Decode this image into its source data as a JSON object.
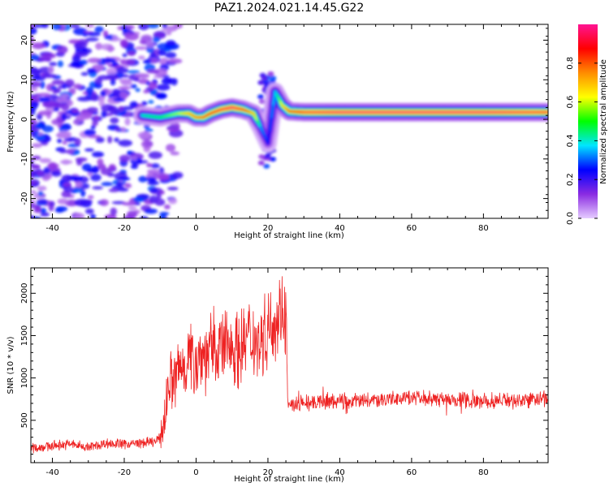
{
  "title": "PAZ1.2024.021.14.45.G22",
  "chart_data": [
    {
      "type": "heatmap",
      "xlabel": "Height of straight line (km)",
      "ylabel": "Frequency (Hz)",
      "xlim": [
        -46,
        98
      ],
      "ylim": [
        -25,
        24
      ],
      "xticks": [
        -40,
        -20,
        0,
        20,
        40,
        60,
        80
      ],
      "yticks": [
        -20,
        -10,
        0,
        10,
        20
      ],
      "colorbar": {
        "label": "Normalized spectral amplitude",
        "range": [
          0.0,
          1.0
        ],
        "ticks": [
          "0.0",
          "0.2",
          "0.4",
          "0.6",
          "0.8"
        ],
        "colors": [
          "#e6ccff",
          "#8a2be2",
          "#0000ff",
          "#00e5ff",
          "#00ff00",
          "#ffff00",
          "#ff8c00",
          "#ff0000",
          "#ff1493"
        ]
      },
      "ridge": {
        "x": [
          -15,
          -10,
          -5,
          -2,
          0,
          2,
          4,
          7,
          10,
          13,
          16,
          18,
          20,
          22,
          24,
          26,
          30,
          40,
          60,
          80,
          98
        ],
        "y": [
          1,
          0.5,
          1.5,
          1.5,
          0.5,
          0.5,
          1.5,
          2.5,
          3,
          2.5,
          1.5,
          -2,
          -6,
          7,
          3.5,
          2,
          1.8,
          1.8,
          1.8,
          1.8,
          1.8
        ],
        "amplitude": [
          0.45,
          0.5,
          0.6,
          0.75,
          0.8,
          0.85,
          0.9,
          0.95,
          1.0,
          0.9,
          0.7,
          0.35,
          0.25,
          0.4,
          0.7,
          0.85,
          0.95,
          1.0,
          1.0,
          1.0,
          0.95
        ]
      },
      "noise_region": {
        "x_range": [
          -46,
          -5
        ],
        "amplitude_range": [
          0.05,
          0.3
        ]
      }
    },
    {
      "type": "line",
      "xlabel": "Height of straight line (km)",
      "ylabel": "SNR (10 * v/v)",
      "xlim": [
        -46,
        98
      ],
      "ylim": [
        0,
        2300
      ],
      "xticks": [
        -40,
        -20,
        0,
        20,
        40,
        60,
        80
      ],
      "yticks": [
        500,
        1000,
        1500,
        2000
      ],
      "color": "#ee2222",
      "series": [
        {
          "x": [
            -46,
            -40,
            -35,
            -30,
            -25,
            -20,
            -15,
            -11,
            -10,
            -9,
            -8,
            -7,
            -6,
            -5,
            -3,
            0,
            3,
            6,
            9,
            12,
            15,
            18,
            20,
            22,
            24,
            25,
            25.5,
            26,
            30,
            40,
            50,
            60,
            70,
            80,
            90,
            98
          ],
          "values": [
            170,
            200,
            220,
            180,
            230,
            220,
            230,
            250,
            300,
            450,
            850,
            1000,
            950,
            1100,
            1200,
            1250,
            1300,
            1350,
            1400,
            1350,
            1500,
            1450,
            1600,
            1700,
            1800,
            1750,
            700,
            650,
            700,
            720,
            740,
            760,
            750,
            730,
            740,
            760
          ]
        }
      ]
    }
  ]
}
